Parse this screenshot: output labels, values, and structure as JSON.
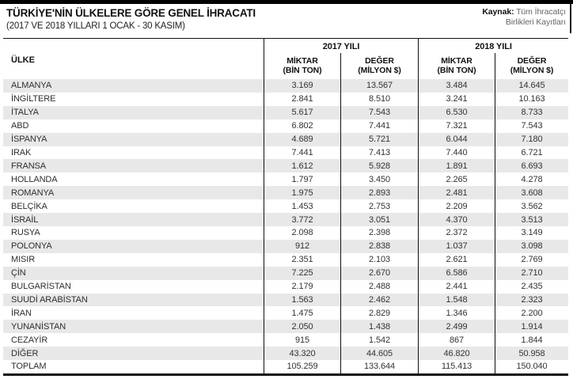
{
  "page": {
    "title": "TÜRKİYE'NİN ÜLKELERE GÖRE GENEL İHRACATI",
    "subtitle": "(2017 VE 2018 YILLARI 1 OCAK - 30 KASIM)"
  },
  "source": {
    "label": "Kaynak:",
    "text": "Tüm İhracatçı Birlikleri Kayıtları"
  },
  "table": {
    "country_header": "ÜLKE",
    "groups": [
      {
        "year": "2017 YILI",
        "cols": [
          {
            "l1": "MİKTAR",
            "l2": "(BİN TON)"
          },
          {
            "l1": "DEĞER",
            "l2": "(MİLYON $)"
          }
        ]
      },
      {
        "year": "2018 YILI",
        "cols": [
          {
            "l1": "MİKTAR",
            "l2": "(BİN TON)"
          },
          {
            "l1": "DEĞER",
            "l2": "(MİLYON $)"
          }
        ]
      }
    ]
  },
  "colors": {
    "stripe": "#e8e8e8",
    "border": "#111111",
    "topbar": "#000000"
  },
  "chart_data": {
    "type": "table",
    "title": "TÜRKİYE'NİN ÜLKELERE GÖRE GENEL İHRACATI (2017 VE 2018 YILLARI 1 OCAK - 30 KASIM)",
    "columns": [
      "ÜLKE",
      "2017 MİKTAR (BİN TON)",
      "2017 DEĞER (MİLYON $)",
      "2018 MİKTAR (BİN TON)",
      "2018 DEĞER (MİLYON $)"
    ],
    "rows": [
      [
        "ALMANYA",
        "3.169",
        "13.567",
        "3.484",
        "14.645"
      ],
      [
        "İNGİLTERE",
        "2.841",
        "8.510",
        "3.241",
        "10.163"
      ],
      [
        "İTALYA",
        "5.617",
        "7.543",
        "6.530",
        "8.733"
      ],
      [
        "ABD",
        "6.802",
        "7.441",
        "7.321",
        "7.543"
      ],
      [
        "İSPANYA",
        "4.689",
        "5.721",
        "6.044",
        "7.180"
      ],
      [
        "IRAK",
        "7.441",
        "7.413",
        "7.440",
        "6.721"
      ],
      [
        "FRANSA",
        "1.612",
        "5.928",
        "1.891",
        "6.693"
      ],
      [
        "HOLLANDA",
        "1.797",
        "3.450",
        "2.265",
        "4.278"
      ],
      [
        "ROMANYA",
        "1.975",
        "2.893",
        "2.481",
        "3.608"
      ],
      [
        "BELÇİKA",
        "1.453",
        "2.753",
        "2.209",
        "3.562"
      ],
      [
        "İSRAİL",
        "3.772",
        "3.051",
        "4.370",
        "3.513"
      ],
      [
        "RUSYA",
        "2.098",
        "2.398",
        "2.372",
        "3.149"
      ],
      [
        "POLONYA",
        "912",
        "2.838",
        "1.037",
        "3.098"
      ],
      [
        "MISIR",
        "2.351",
        "2.103",
        "2.621",
        "2.769"
      ],
      [
        "ÇİN",
        "7.225",
        "2.670",
        "6.586",
        "2.710"
      ],
      [
        "BULGARİSTAN",
        "2.179",
        "2.488",
        "2.441",
        "2.435"
      ],
      [
        "SUUDİ ARABİSTAN",
        "1.563",
        "2.462",
        "1.548",
        "2.323"
      ],
      [
        "İRAN",
        "1.475",
        "2.829",
        "1.346",
        "2.200"
      ],
      [
        "YUNANİSTAN",
        "2.050",
        "1.438",
        "2.499",
        "1.914"
      ],
      [
        "CEZAYİR",
        "915",
        "1.542",
        "867",
        "1.844"
      ],
      [
        "DİĞER",
        "43.320",
        "44.605",
        "46.820",
        "50.958"
      ],
      [
        "TOPLAM",
        "105.259",
        "133.644",
        "115.413",
        "150.040"
      ]
    ],
    "source": "Kaynak: Tüm İhracatçı Birlikleri Kayıtları",
    "layout": {
      "striped_rows": "odd",
      "value_align": "center"
    }
  }
}
